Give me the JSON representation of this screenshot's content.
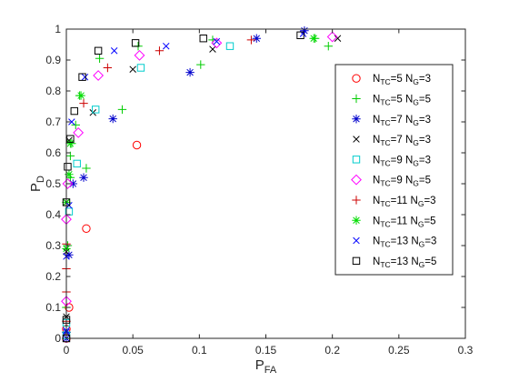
{
  "chart_data": {
    "type": "scatter",
    "title": "",
    "xlabel": {
      "main": "P",
      "sub": "FA"
    },
    "ylabel": {
      "main": "P",
      "sub": "D"
    },
    "xlim": [
      0,
      0.3
    ],
    "ylim": [
      0,
      1
    ],
    "xticks": [
      "0",
      "0.05",
      "0.1",
      "0.15",
      "0.2",
      "0.25",
      "0.3"
    ],
    "yticks": [
      "0",
      "0.1",
      "0.2",
      "0.3",
      "0.4",
      "0.5",
      "0.6",
      "0.7",
      "0.8",
      "0.9",
      "1"
    ],
    "grid": false,
    "legend_position": "right",
    "series": [
      {
        "name": "N_TC=5 N_G=3",
        "label_parts": [
          "5",
          "3"
        ],
        "marker": "circle",
        "color": "#ff0000",
        "points": [
          [
            0,
            0.0
          ],
          [
            0,
            0.03
          ],
          [
            0.002,
            0.1
          ],
          [
            0.015,
            0.355
          ],
          [
            0.053,
            0.625
          ]
        ]
      },
      {
        "name": "N_TC=5 N_G=5",
        "label_parts": [
          "5",
          "5"
        ],
        "marker": "plus",
        "color": "#00cc00",
        "points": [
          [
            0,
            0.02
          ],
          [
            0,
            0.1
          ],
          [
            0.001,
            0.3
          ],
          [
            0.003,
            0.52
          ],
          [
            0.003,
            0.59
          ],
          [
            0.004,
            0.63
          ],
          [
            0.007,
            0.69
          ],
          [
            0.01,
            0.785
          ],
          [
            0.015,
            0.55
          ],
          [
            0.025,
            0.905
          ],
          [
            0.042,
            0.74
          ],
          [
            0.054,
            0.945
          ],
          [
            0.101,
            0.885
          ],
          [
            0.11,
            0.965
          ],
          [
            0.187,
            0.97
          ],
          [
            0.197,
            0.945
          ]
        ]
      },
      {
        "name": "N_TC=7 N_G=3",
        "label_parts": [
          "7",
          "3"
        ],
        "marker": "asterisk",
        "color": "#0000cc",
        "points": [
          [
            0,
            0.0
          ],
          [
            0,
            0.02
          ],
          [
            0.002,
            0.27
          ],
          [
            0.005,
            0.5
          ],
          [
            0.013,
            0.52
          ],
          [
            0.035,
            0.71
          ],
          [
            0.093,
            0.86
          ],
          [
            0.143,
            0.97
          ],
          [
            0.179,
            0.995
          ]
        ]
      },
      {
        "name": "N_TC=7 N_G=3",
        "label_parts": [
          "7",
          "3"
        ],
        "marker": "x",
        "color": "#000000",
        "points": [
          [
            0,
            0.07
          ],
          [
            0,
            0.28
          ],
          [
            0,
            0.44
          ],
          [
            0.002,
            0.64
          ],
          [
            0.02,
            0.73
          ],
          [
            0.05,
            0.87
          ],
          [
            0.11,
            0.935
          ],
          [
            0.204,
            0.97
          ]
        ]
      },
      {
        "name": "N_TC=9 N_G=3",
        "label_parts": [
          "9",
          "3"
        ],
        "marker": "square",
        "color": "#00cccc",
        "points": [
          [
            0,
            0.01
          ],
          [
            0,
            0.05
          ],
          [
            0.002,
            0.41
          ],
          [
            0.008,
            0.565
          ],
          [
            0.022,
            0.74
          ],
          [
            0.056,
            0.875
          ],
          [
            0.123,
            0.945
          ]
        ]
      },
      {
        "name": "N_TC=9 N_G=5",
        "label_parts": [
          "9",
          "5"
        ],
        "marker": "diamond",
        "color": "#ff00ff",
        "points": [
          [
            0,
            0.12
          ],
          [
            0,
            0.385
          ],
          [
            0.001,
            0.5
          ],
          [
            0.009,
            0.665
          ],
          [
            0.024,
            0.85
          ],
          [
            0.055,
            0.915
          ],
          [
            0.113,
            0.955
          ],
          [
            0.2,
            0.975
          ]
        ]
      },
      {
        "name": "N_TC=11 N_G=3",
        "label_parts": [
          "11",
          "3"
        ],
        "marker": "plus",
        "color": "#cc0000",
        "points": [
          [
            0,
            0.055
          ],
          [
            0,
            0.15
          ],
          [
            0,
            0.225
          ],
          [
            0,
            0.305
          ],
          [
            0.013,
            0.76
          ],
          [
            0.031,
            0.875
          ],
          [
            0.07,
            0.93
          ],
          [
            0.139,
            0.965
          ]
        ]
      },
      {
        "name": "N_TC=11 N_G=5",
        "label_parts": [
          "11",
          "5"
        ],
        "marker": "asterisk",
        "color": "#00dd00",
        "points": [
          [
            0,
            0.29
          ],
          [
            0,
            0.44
          ],
          [
            0.002,
            0.53
          ],
          [
            0.003,
            0.63
          ],
          [
            0.011,
            0.785
          ],
          [
            0.186,
            0.97
          ]
        ]
      },
      {
        "name": "N_TC=13 N_G=3",
        "label_parts": [
          "13",
          "3"
        ],
        "marker": "x",
        "color": "#0000ff",
        "points": [
          [
            0,
            0.025
          ],
          [
            0,
            0.265
          ],
          [
            0.002,
            0.43
          ],
          [
            0.004,
            0.7
          ],
          [
            0.014,
            0.845
          ],
          [
            0.036,
            0.93
          ],
          [
            0.075,
            0.945
          ],
          [
            0.113,
            0.96
          ],
          [
            0.178,
            0.985
          ]
        ]
      },
      {
        "name": "N_TC=13 N_G=5",
        "label_parts": [
          "13",
          "5"
        ],
        "marker": "square",
        "color": "#000000",
        "points": [
          [
            0,
            0.0
          ],
          [
            0,
            0.06
          ],
          [
            0,
            0.44
          ],
          [
            0.001,
            0.555
          ],
          [
            0.003,
            0.645
          ],
          [
            0.006,
            0.735
          ],
          [
            0.012,
            0.845
          ],
          [
            0.024,
            0.93
          ],
          [
            0.052,
            0.955
          ],
          [
            0.103,
            0.97
          ],
          [
            0.176,
            0.98
          ]
        ]
      }
    ]
  }
}
